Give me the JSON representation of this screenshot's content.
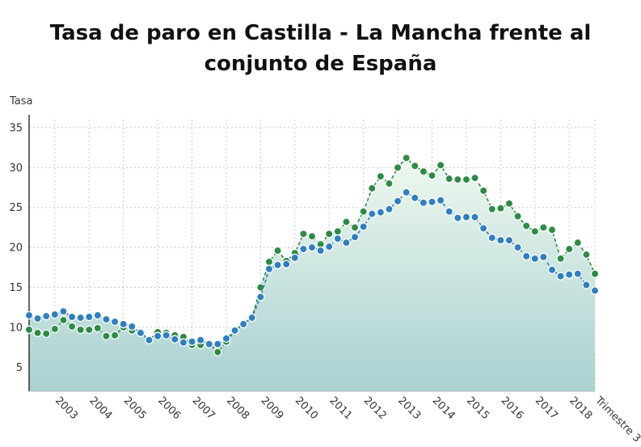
{
  "chart_data": {
    "type": "line",
    "title": "Tasa de paro en Castilla - La Mancha frente al conjunto de España",
    "ylabel": "Tasa",
    "xlabel": "",
    "ylim": [
      2,
      36
    ],
    "yticks": [
      5,
      10,
      15,
      20,
      25,
      30,
      35
    ],
    "xticks": [
      {
        "label": "2003",
        "index": 3
      },
      {
        "label": "2004",
        "index": 7
      },
      {
        "label": "2005",
        "index": 11
      },
      {
        "label": "2006",
        "index": 15
      },
      {
        "label": "2007",
        "index": 19
      },
      {
        "label": "2008",
        "index": 23
      },
      {
        "label": "2009",
        "index": 27
      },
      {
        "label": "2010",
        "index": 31
      },
      {
        "label": "2011",
        "index": 35
      },
      {
        "label": "2012",
        "index": 39
      },
      {
        "label": "2013",
        "index": 43
      },
      {
        "label": "2014",
        "index": 47
      },
      {
        "label": "2015",
        "index": 51
      },
      {
        "label": "2016",
        "index": 55
      },
      {
        "label": "2017",
        "index": 59
      },
      {
        "label": "2018",
        "index": 63
      },
      {
        "label": "Trimestre 3",
        "index": 66
      }
    ],
    "grid": true,
    "legend": "none",
    "series": [
      {
        "color": "#2e8b45",
        "values": [
          9.7,
          9.3,
          9.2,
          9.8,
          10.9,
          10.1,
          9.7,
          9.7,
          9.9,
          8.9,
          9.0,
          10.0,
          9.6,
          9.4,
          8.4,
          9.4,
          9.3,
          9.0,
          8.8,
          7.8,
          7.8,
          8.0,
          6.9,
          8.2,
          9.6,
          10.5,
          11.2,
          15.0,
          18.2,
          19.6,
          18.3,
          19.3,
          21.7,
          21.4,
          20.4,
          21.7,
          22.0,
          23.2,
          22.5,
          24.5,
          27.4,
          28.9,
          28.0,
          30.0,
          31.2,
          30.2,
          29.5,
          29.0,
          30.3,
          28.6,
          28.5,
          28.5,
          28.7,
          27.1,
          24.8,
          24.9,
          25.5,
          23.9,
          22.7,
          22.0,
          22.5,
          22.2,
          18.6,
          19.8,
          20.6,
          19.1,
          16.7
        ]
      },
      {
        "color": "#2f7fc0",
        "values": [
          11.5,
          11.1,
          11.4,
          11.6,
          12.0,
          11.3,
          11.2,
          11.3,
          11.5,
          11.0,
          10.7,
          10.4,
          10.1,
          9.3,
          8.4,
          8.9,
          9.0,
          8.5,
          8.1,
          8.2,
          8.4,
          7.9,
          7.9,
          8.6,
          9.6,
          10.4,
          11.2,
          13.8,
          17.3,
          17.8,
          17.9,
          18.7,
          19.8,
          20.0,
          19.6,
          20.1,
          21.1,
          20.6,
          21.3,
          22.6,
          24.2,
          24.4,
          24.8,
          25.8,
          26.9,
          26.2,
          25.6,
          25.7,
          25.9,
          24.5,
          23.7,
          23.8,
          23.8,
          22.4,
          21.2,
          20.9,
          20.9,
          20.0,
          18.9,
          18.6,
          18.8,
          17.2,
          16.4,
          16.6,
          16.7,
          15.3,
          14.6
        ]
      }
    ],
    "fill_top_color": "#eef8ee",
    "fill_bottom_color": "#a9d1d1"
  }
}
